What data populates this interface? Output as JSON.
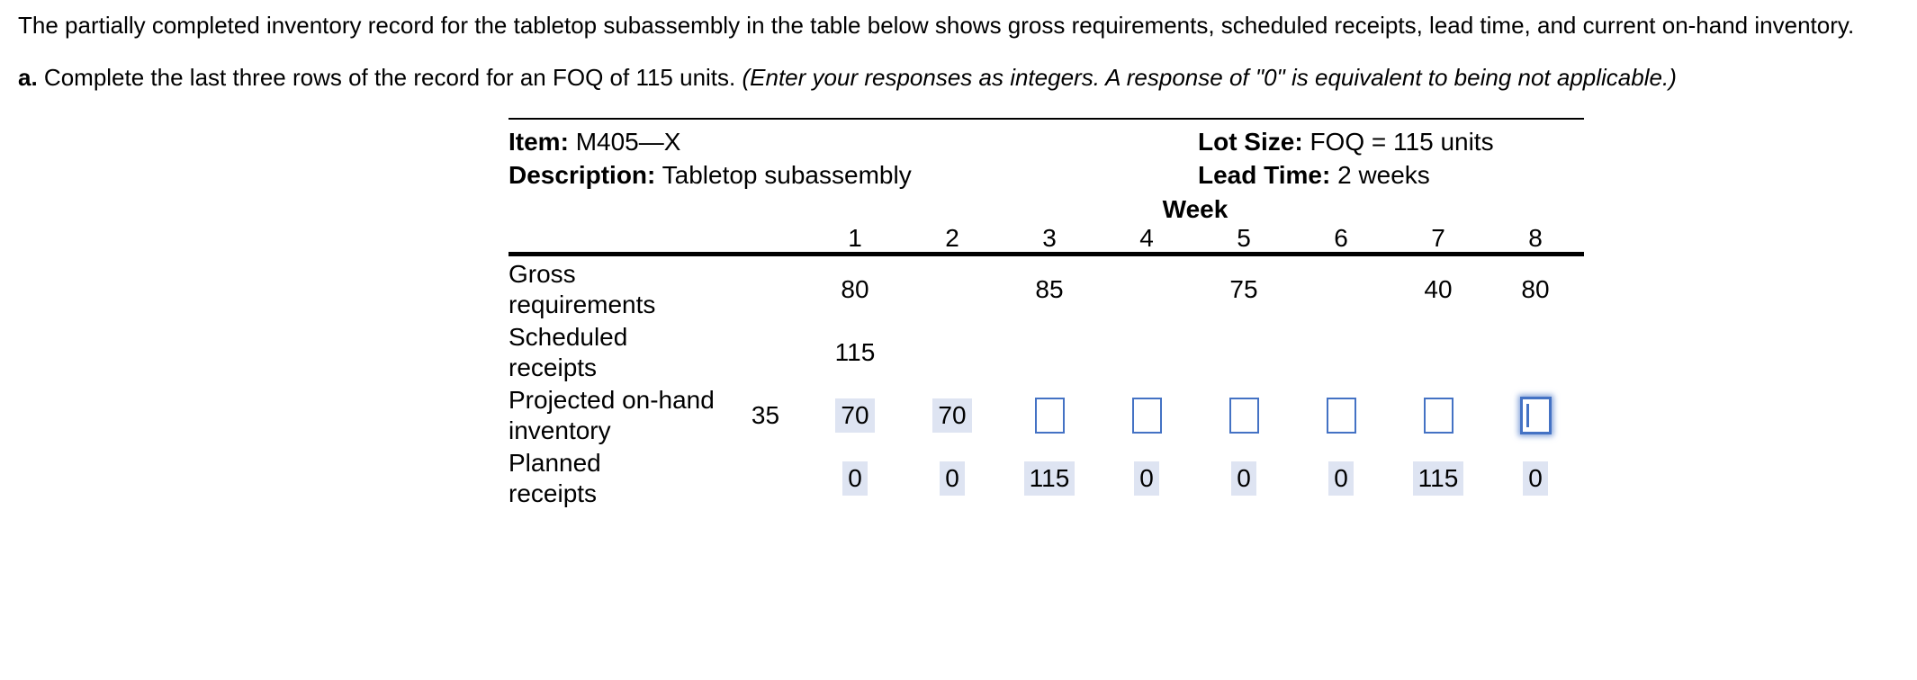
{
  "question": {
    "line1": "The partially completed inventory record for the tabletop subassembly in the table below shows gross requirements, scheduled receipts, lead time, and current on-hand inventory.",
    "part_label": "a.",
    "instruction": "Complete the last three rows of the record for an FOQ of 115 units.",
    "note": "(Enter your responses as integers. A response of \"0\" is equivalent to being not applicable.)"
  },
  "record": {
    "item_label": "Item:",
    "item_value": "M405—X",
    "description_label": "Description:",
    "description_value": "Tabletop subassembly",
    "lot_size_label": "Lot Size:",
    "lot_size_value": "FOQ = 115 units",
    "lead_time_label": "Lead Time:",
    "lead_time_value": "2 weeks",
    "week_header": "Week",
    "weeks": [
      "1",
      "2",
      "3",
      "4",
      "5",
      "6",
      "7",
      "8"
    ],
    "rows": {
      "gross": {
        "label": [
          "Gross",
          "requirements"
        ],
        "cells": [
          "80",
          "",
          "85",
          "",
          "75",
          "",
          "40",
          "80"
        ]
      },
      "scheduled": {
        "label": [
          "Scheduled",
          "receipts"
        ],
        "cells": [
          "115",
          "",
          "",
          "",
          "",
          "",
          "",
          ""
        ]
      },
      "projected": {
        "label": [
          "Projected on-hand",
          "inventory"
        ],
        "initial": "35",
        "filled_week_1": "70",
        "filled_week_2": "70",
        "empty_input_weeks": [
          "3",
          "4",
          "5",
          "6",
          "7",
          "8"
        ],
        "focused_week": "8"
      },
      "planned": {
        "label": [
          "Planned",
          "receipts"
        ],
        "cells": [
          "0",
          "0",
          "115",
          "0",
          "0",
          "0",
          "115",
          "0"
        ]
      }
    }
  },
  "colors": {
    "highlight_bg": "#dee4f2",
    "input_border": "#4472c4"
  }
}
